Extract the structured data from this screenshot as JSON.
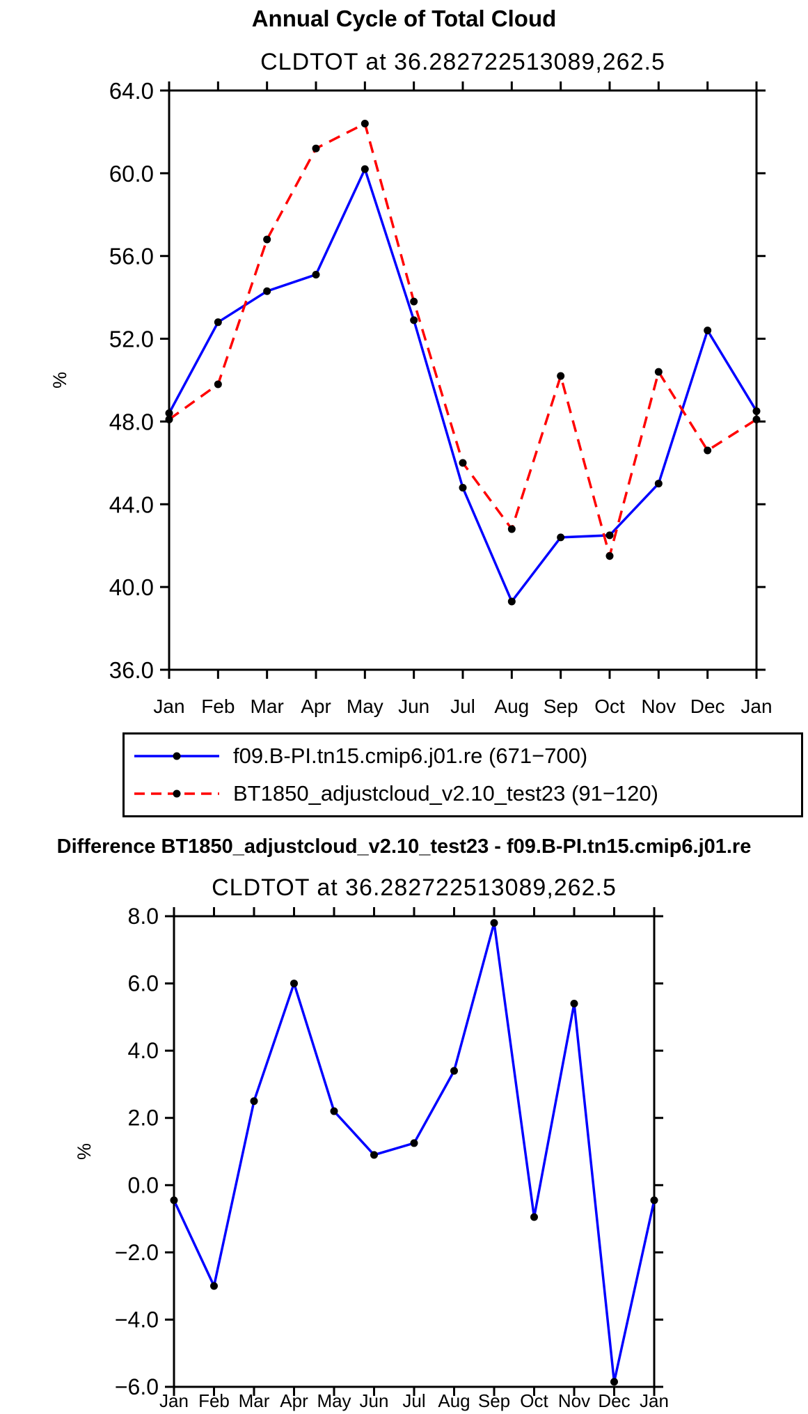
{
  "colors": {
    "axis": "#000000",
    "marker": "#000000",
    "line_blue": "#0000ff",
    "line_red": "#ff0000",
    "background": "#ffffff"
  },
  "chart_data": [
    {
      "type": "line",
      "title": "Annual Cycle of Total Cloud",
      "subtitle": "CLDTOT at 36.282722513089,262.5",
      "ylabel": "%",
      "xlabel": "",
      "categories": [
        "Jan",
        "Feb",
        "Mar",
        "Apr",
        "May",
        "Jun",
        "Jul",
        "Aug",
        "Sep",
        "Oct",
        "Nov",
        "Dec",
        "Jan"
      ],
      "ylim": [
        36.0,
        64.0
      ],
      "ytick_step": 4.0,
      "yticks": [
        {
          "v": 64.0,
          "label": "64.0"
        },
        {
          "v": 60.0,
          "label": "60.0"
        },
        {
          "v": 56.0,
          "label": "56.0"
        },
        {
          "v": 52.0,
          "label": "52.0"
        },
        {
          "v": 48.0,
          "label": "48.0"
        },
        {
          "v": 44.0,
          "label": "44.0"
        },
        {
          "v": 40.0,
          "label": "40.0"
        },
        {
          "v": 36.0,
          "label": "36.0"
        }
      ],
      "grid": false,
      "legend_position": "below",
      "series": [
        {
          "name": "f09.B-PI.tn15.cmip6.j01.re (671−700)",
          "color": "#0000ff",
          "style": "solid",
          "marker": "filled-circle",
          "values": [
            48.4,
            52.8,
            54.3,
            55.1,
            60.2,
            52.9,
            44.8,
            39.3,
            42.4,
            42.5,
            45.0,
            52.4,
            48.5
          ]
        },
        {
          "name": "BT1850_adjustcloud_v2.10_test23 (91−120)",
          "color": "#ff0000",
          "style": "dashed",
          "marker": "filled-circle",
          "values": [
            48.1,
            49.8,
            56.8,
            61.2,
            62.4,
            53.8,
            46.0,
            42.8,
            50.2,
            41.5,
            50.4,
            46.6,
            48.1
          ]
        }
      ]
    },
    {
      "type": "line",
      "title": "Difference BT1850_adjustcloud_v2.10_test23 - f09.B-PI.tn15.cmip6.j01.re",
      "subtitle": "CLDTOT at 36.282722513089,262.5",
      "ylabel": "%",
      "xlabel": "",
      "categories": [
        "Jan",
        "Feb",
        "Mar",
        "Apr",
        "May",
        "Jun",
        "Jul",
        "Aug",
        "Sep",
        "Oct",
        "Nov",
        "Dec",
        "Jan"
      ],
      "ylim": [
        -6.0,
        8.0
      ],
      "ytick_step": 2.0,
      "yticks": [
        {
          "v": 8.0,
          "label": "8.0"
        },
        {
          "v": 6.0,
          "label": "6.0"
        },
        {
          "v": 4.0,
          "label": "4.0"
        },
        {
          "v": 2.0,
          "label": "2.0"
        },
        {
          "v": 0.0,
          "label": "0.0"
        },
        {
          "v": -2.0,
          "label": "−2.0"
        },
        {
          "v": -4.0,
          "label": "−4.0"
        },
        {
          "v": -6.0,
          "label": "−6.0"
        }
      ],
      "grid": false,
      "legend_position": "none",
      "series": [
        {
          "color": "#0000ff",
          "style": "solid",
          "marker": "filled-circle",
          "values": [
            -0.45,
            -3.0,
            2.5,
            6.0,
            2.2,
            0.9,
            1.25,
            3.4,
            7.8,
            -0.95,
            5.4,
            -5.85,
            -0.45
          ]
        }
      ]
    }
  ]
}
